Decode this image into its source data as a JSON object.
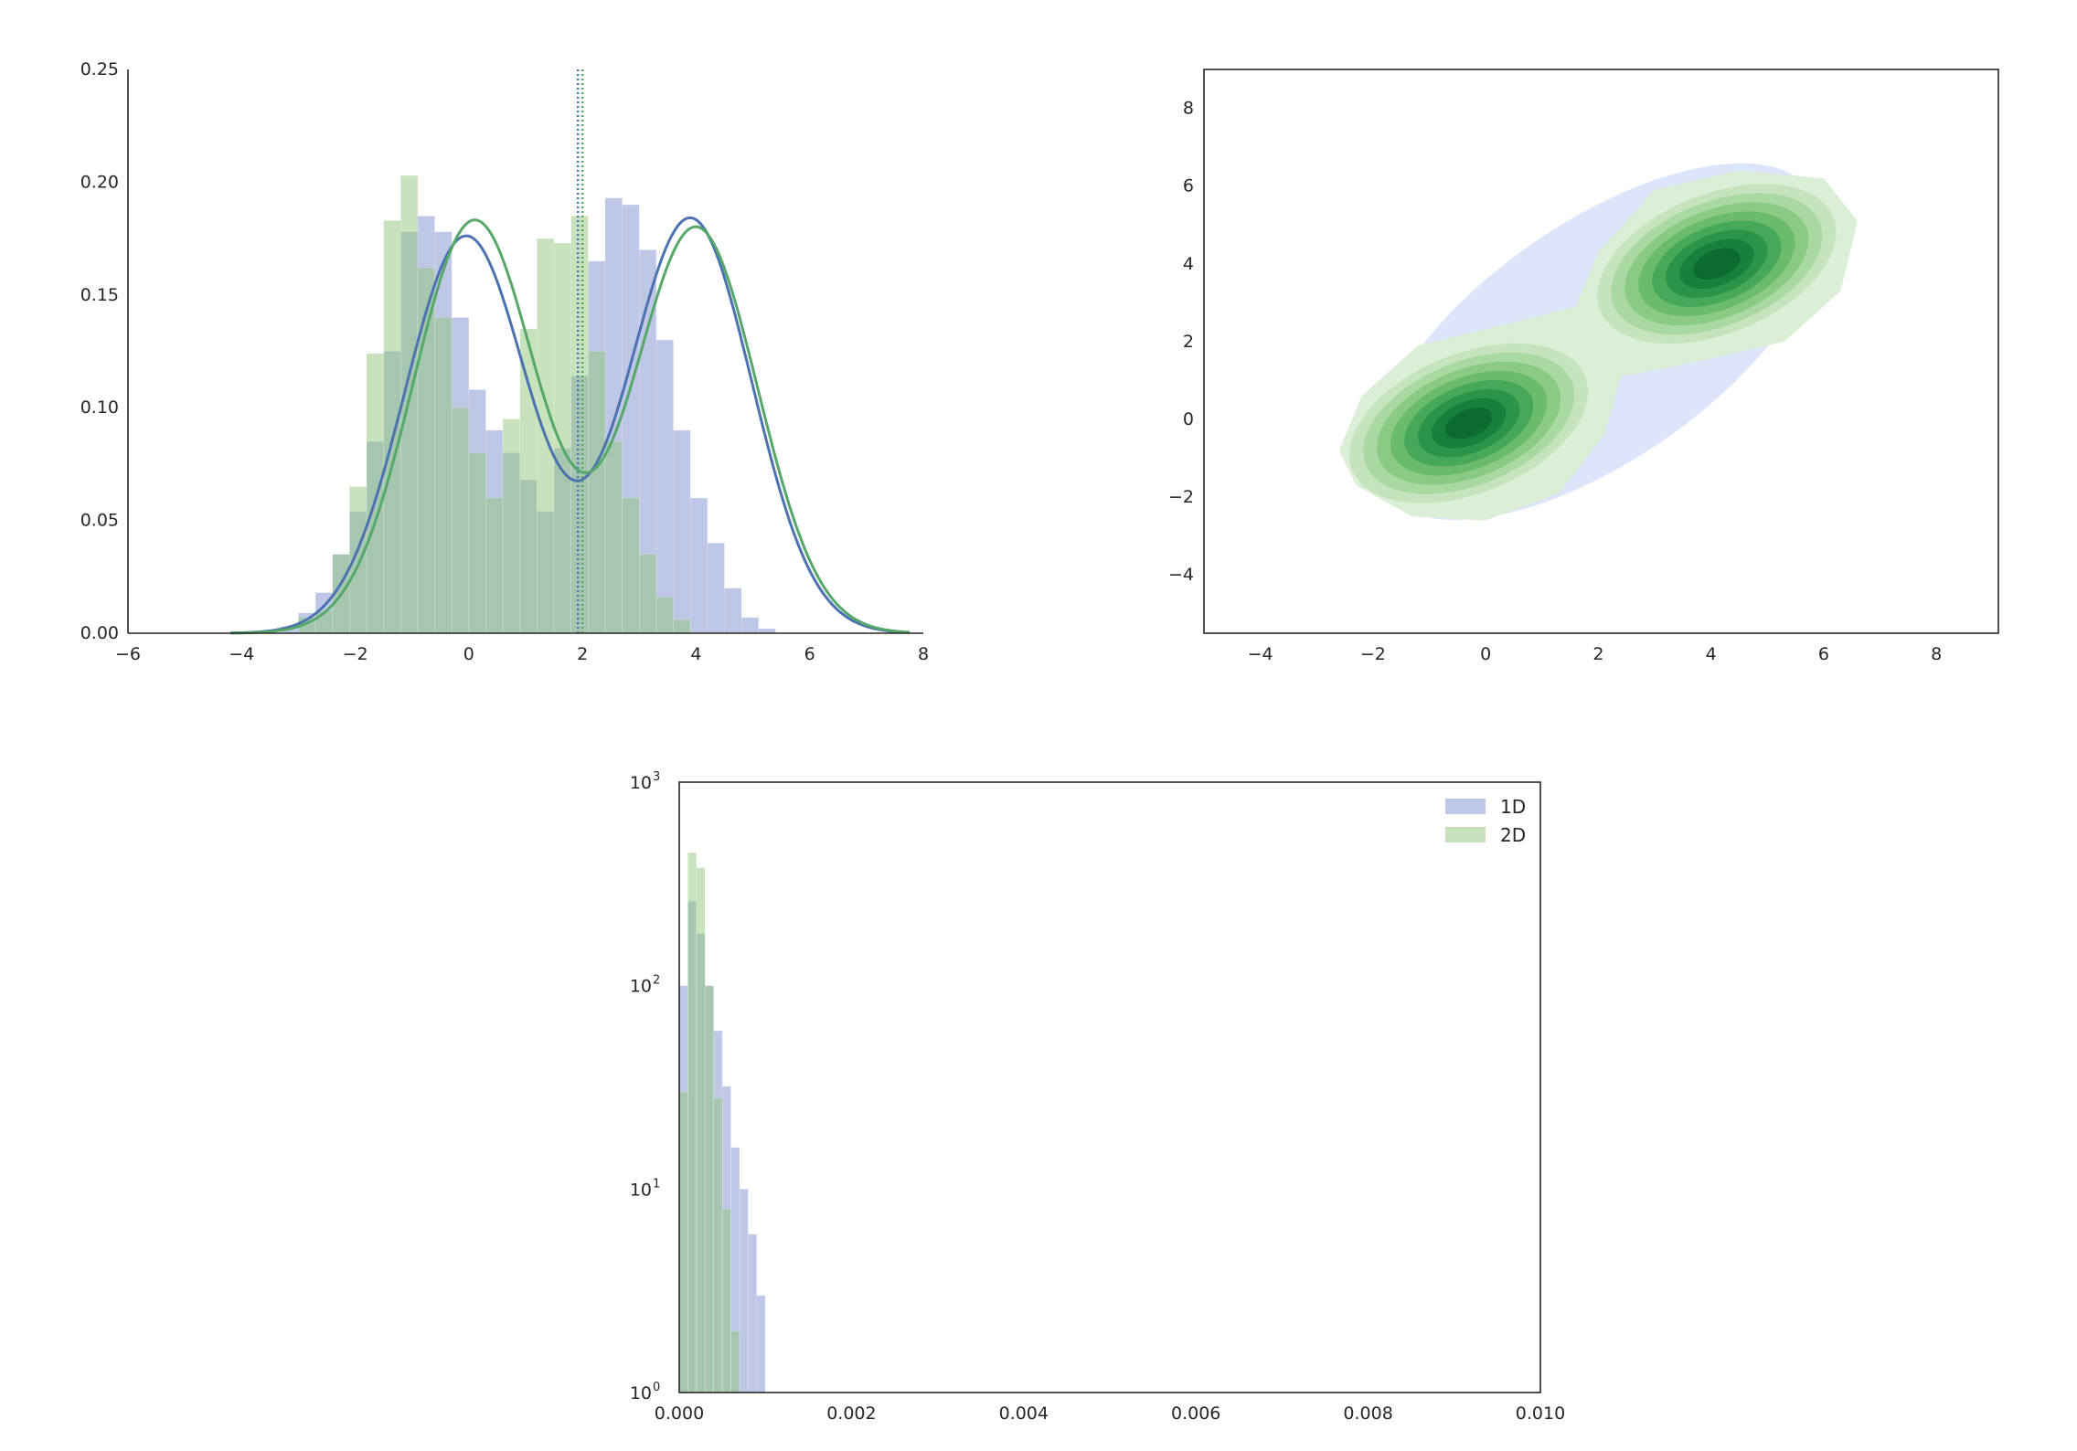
{
  "colors": {
    "blue": "#4c72b0",
    "green": "#55a868",
    "hist_blue": "#7f8fd0",
    "hist_green": "#8fc57a",
    "axis": "#262626"
  },
  "chart_data": [
    {
      "id": "histogram-kde",
      "type": "bar",
      "title": "",
      "xlabel": "",
      "ylabel": "",
      "xlim": [
        -6,
        8
      ],
      "ylim": [
        0,
        0.25
      ],
      "xticks": [
        "−6",
        "−4",
        "−2",
        "0",
        "2",
        "4",
        "6",
        "8"
      ],
      "yticks": [
        "0.00",
        "0.05",
        "0.10",
        "0.15",
        "0.20",
        "0.25"
      ],
      "grid": false,
      "bin_width": 0.3,
      "series": [
        {
          "color": "blue",
          "bins_start": -3.3,
          "values": [
            0.003,
            0.009,
            0.018,
            0.035,
            0.054,
            0.085,
            0.125,
            0.178,
            0.185,
            0.178,
            0.14,
            0.108,
            0.09,
            0.08,
            0.068,
            0.054,
            0.082,
            0.114,
            0.165,
            0.193,
            0.19,
            0.17,
            0.13,
            0.09,
            0.06,
            0.04,
            0.02,
            0.007,
            0.002
          ],
          "kde_peaks": [
            {
              "x": -0.05,
              "y": 0.176
            },
            {
              "x": 3.9,
              "y": 0.184
            }
          ],
          "kde_valley": {
            "x": 1.95,
            "y": 0.07
          },
          "vline_x": 1.92
        },
        {
          "color": "green",
          "bins_start": -3.0,
          "values": [
            0.007,
            0.01,
            0.035,
            0.065,
            0.124,
            0.183,
            0.203,
            0.162,
            0.14,
            0.1,
            0.08,
            0.06,
            0.095,
            0.135,
            0.175,
            0.173,
            0.185,
            0.125,
            0.085,
            0.06,
            0.035,
            0.016,
            0.006
          ],
          "kde_peaks": [
            {
              "x": 0.1,
              "y": 0.183
            },
            {
              "x": 4.0,
              "y": 0.18
            }
          ],
          "kde_valley": {
            "x": 2.0,
            "y": 0.075
          },
          "vline_x": 2.0
        }
      ]
    },
    {
      "id": "kde-2d",
      "type": "heatmap",
      "title": "",
      "xlabel": "",
      "ylabel": "",
      "xlim": [
        -5,
        9.1
      ],
      "ylim": [
        -5.5,
        9
      ],
      "xticks": [
        "−4",
        "−2",
        "0",
        "2",
        "4",
        "6",
        "8"
      ],
      "yticks": [
        "−4",
        "−2",
        "0",
        "2",
        "4",
        "6",
        "8"
      ],
      "grid": false,
      "colormap": "Greens",
      "modes": [
        {
          "x": -0.3,
          "y": -0.1
        },
        {
          "x": 4.1,
          "y": 4.0
        }
      ],
      "levels": 9
    },
    {
      "id": "log-histogram",
      "type": "bar",
      "title": "",
      "xlabel": "",
      "ylabel": "",
      "xlim": [
        0.0,
        0.01
      ],
      "ylim": [
        1,
        1000
      ],
      "y_scale": "log",
      "xticks": [
        "0.000",
        "0.002",
        "0.004",
        "0.006",
        "0.008",
        "0.010"
      ],
      "yticks": [
        "10",
        "10",
        "10",
        "10"
      ],
      "ytick_exponents": [
        "0",
        "1",
        "2",
        "3"
      ],
      "grid": false,
      "legend_placement": "top-right",
      "bin_width": 0.0001,
      "series": [
        {
          "name": "1D",
          "color": "hist_blue",
          "bins_start": 0.0,
          "values": [
            100,
            260,
            180,
            100,
            60,
            32,
            16,
            10,
            6,
            3
          ]
        },
        {
          "name": "2D",
          "color": "hist_green",
          "bins_start": 0.0,
          "values": [
            30,
            450,
            380,
            100,
            28,
            8,
            2
          ]
        }
      ]
    }
  ]
}
